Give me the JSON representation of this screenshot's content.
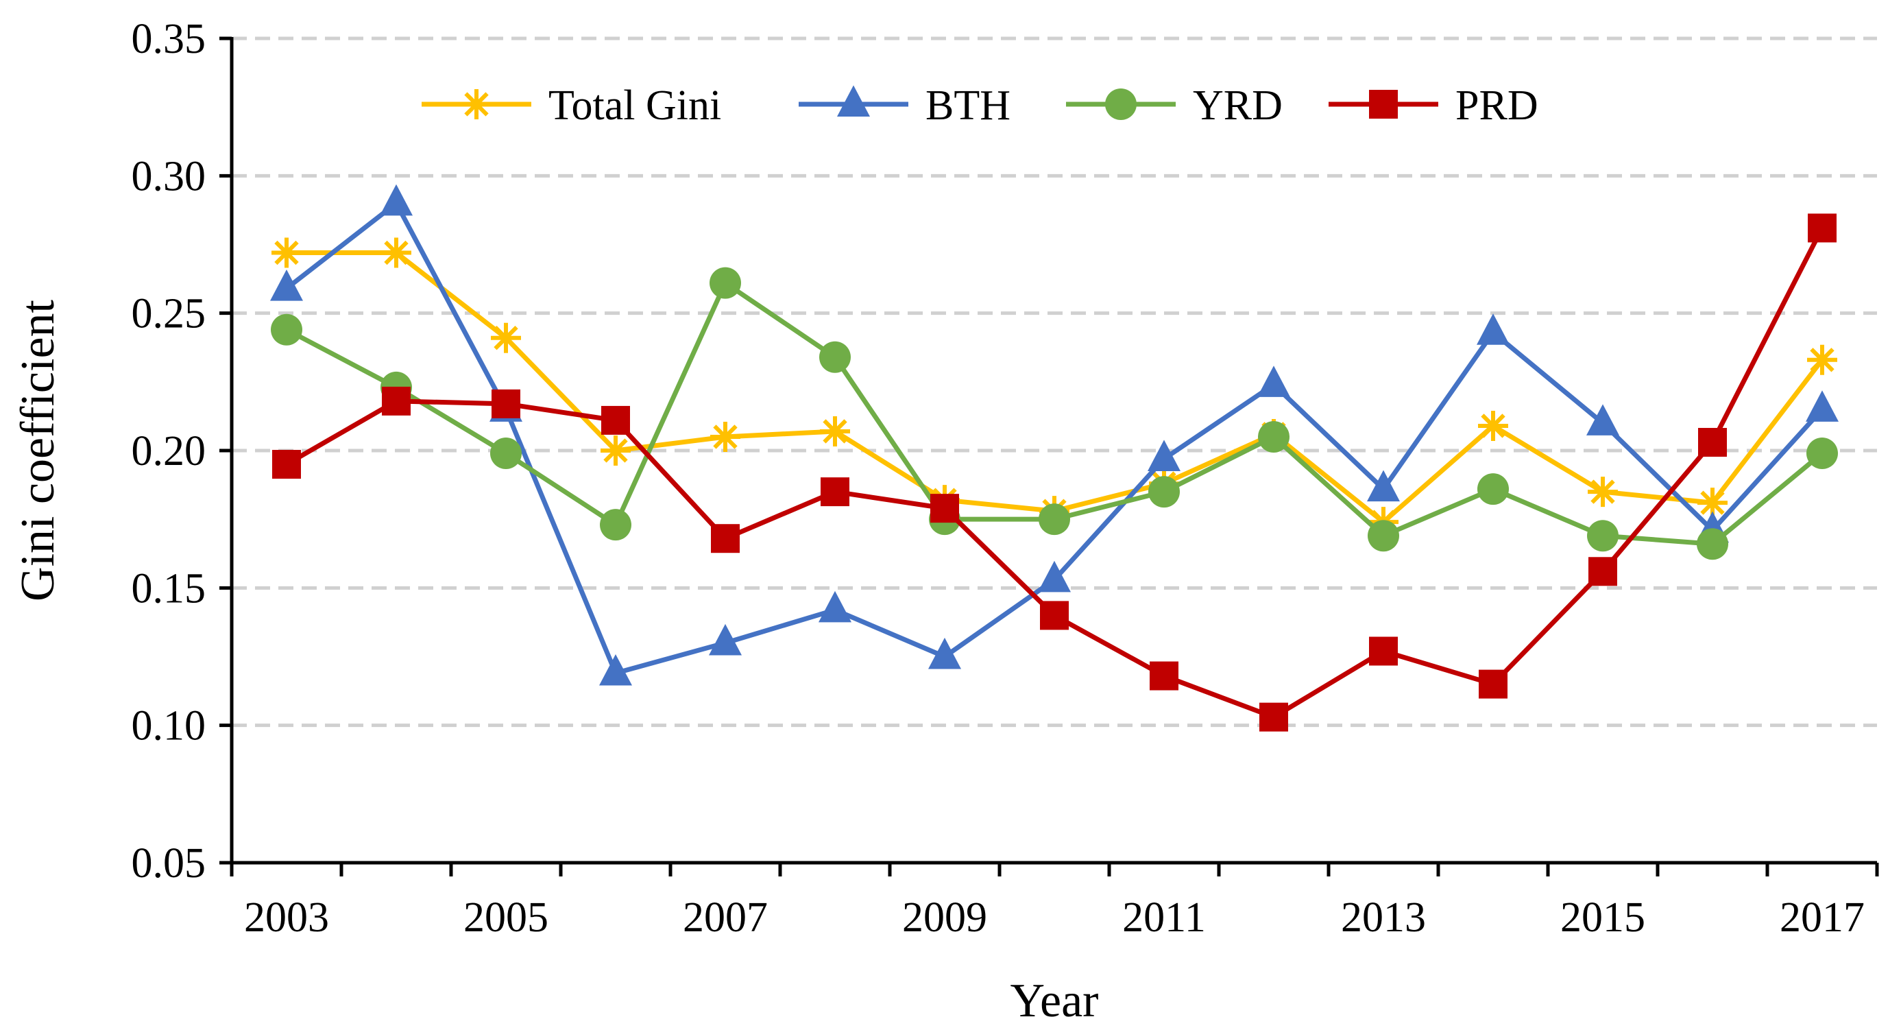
{
  "chart_data": {
    "type": "line",
    "xlabel": "Year",
    "ylabel": "Gini coefficient",
    "categories": [
      2003,
      2004,
      2005,
      2006,
      2007,
      2008,
      2009,
      2010,
      2011,
      2012,
      2013,
      2014,
      2015,
      2016,
      2017
    ],
    "x_tick_labels": [
      "2003",
      "2005",
      "2007",
      "2009",
      "2011",
      "2013",
      "2015",
      "2017"
    ],
    "y_tick_labels": [
      "0.05",
      "0.10",
      "0.15",
      "0.20",
      "0.25",
      "0.30",
      "0.35"
    ],
    "ylim": [
      0.05,
      0.35
    ],
    "grid": "horizontal dashed",
    "legend_position": "top-center",
    "series": [
      {
        "name": "Total Gini",
        "color": "#FFC000",
        "marker": "asterisk",
        "values": [
          0.272,
          0.272,
          0.241,
          0.2,
          0.205,
          0.207,
          0.182,
          0.178,
          0.188,
          0.206,
          0.174,
          0.209,
          0.185,
          0.181,
          0.233
        ]
      },
      {
        "name": "BTH",
        "color": "#4472C4",
        "marker": "triangle",
        "values": [
          0.259,
          0.29,
          0.215,
          0.119,
          0.13,
          0.142,
          0.125,
          0.153,
          0.197,
          0.224,
          0.186,
          0.243,
          0.21,
          0.171,
          0.215
        ]
      },
      {
        "name": "YRD",
        "color": "#70AD47",
        "marker": "circle",
        "values": [
          0.244,
          0.223,
          0.199,
          0.173,
          0.261,
          0.234,
          0.175,
          0.175,
          0.185,
          0.205,
          0.169,
          0.186,
          0.169,
          0.166,
          0.199
        ]
      },
      {
        "name": "PRD",
        "color": "#C00000",
        "marker": "square",
        "values": [
          0.195,
          0.218,
          0.217,
          0.211,
          0.168,
          0.185,
          0.179,
          0.14,
          0.118,
          0.103,
          0.127,
          0.115,
          0.156,
          0.203,
          0.281
        ]
      }
    ]
  }
}
